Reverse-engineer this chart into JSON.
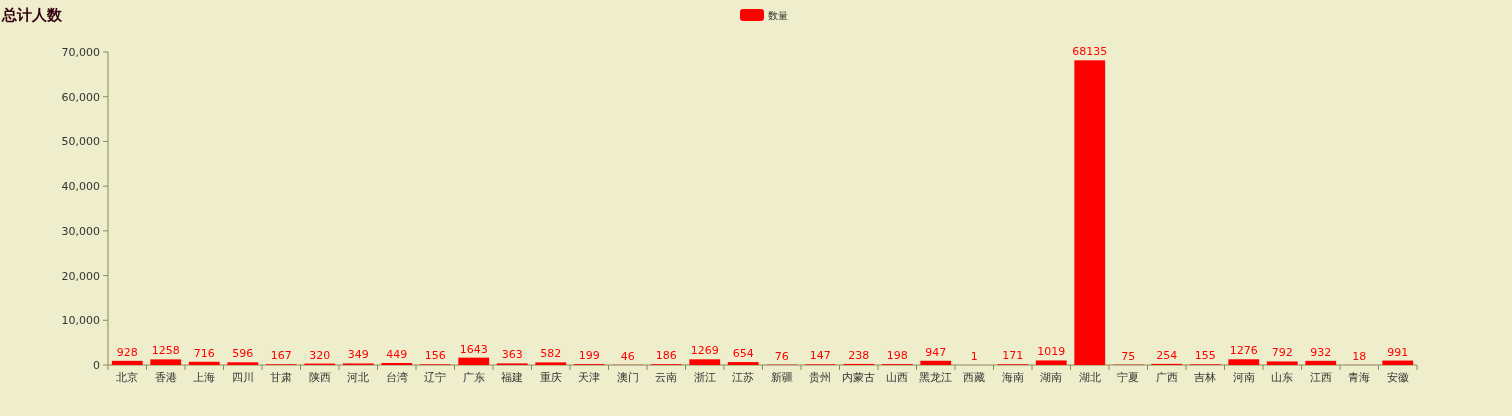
{
  "chart_data": {
    "type": "bar",
    "title": "总计人数",
    "categories": [
      "北京",
      "香港",
      "上海",
      "四川",
      "甘肃",
      "陕西",
      "河北",
      "台湾",
      "辽宁",
      "广东",
      "福建",
      "重庆",
      "天津",
      "澳门",
      "云南",
      "浙江",
      "江苏",
      "新疆",
      "贵州",
      "内蒙古",
      "山西",
      "黑龙江",
      "西藏",
      "海南",
      "湖南",
      "湖北",
      "宁夏",
      "广西",
      "吉林",
      "河南",
      "山东",
      "江西",
      "青海",
      "安徽"
    ],
    "series": [
      {
        "name": "数量",
        "color": "#ff0000",
        "values": [
          928,
          1258,
          716,
          596,
          167,
          320,
          349,
          449,
          156,
          1643,
          363,
          582,
          199,
          46,
          186,
          1269,
          654,
          76,
          147,
          238,
          198,
          947,
          1,
          171,
          1019,
          68135,
          75,
          254,
          155,
          1276,
          792,
          932,
          18,
          991
        ]
      }
    ],
    "ylim": [
      0,
      70000
    ],
    "yticks": [
      {
        "value": 0,
        "label": "0"
      },
      {
        "value": 10000,
        "label": "10,000"
      },
      {
        "value": 20000,
        "label": "20,000"
      },
      {
        "value": 30000,
        "label": "30,000"
      },
      {
        "value": 40000,
        "label": "40,000"
      },
      {
        "value": 50000,
        "label": "50,000"
      },
      {
        "value": 60000,
        "label": "60,000"
      },
      {
        "value": 70000,
        "label": "70,000"
      }
    ],
    "data_labels": true,
    "legend": "top",
    "grid": false
  }
}
